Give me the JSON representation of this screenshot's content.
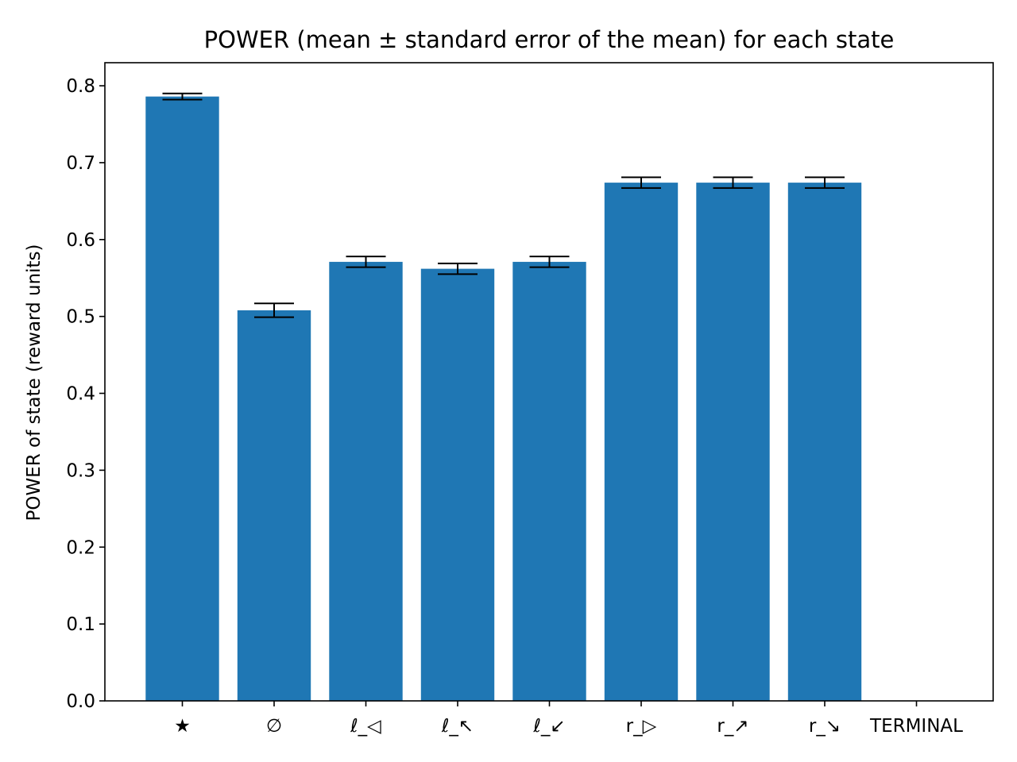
{
  "chart_data": {
    "type": "bar",
    "title": "POWER (mean ± standard error of the mean) for each state",
    "xlabel": "",
    "ylabel": "POWER of state (reward units)",
    "categories": [
      "★",
      "∅",
      "ℓ_◁",
      "ℓ_↖",
      "ℓ_↙",
      "r_▷",
      "r_↗",
      "r_↘",
      "TERMINAL"
    ],
    "values": [
      0.786,
      0.508,
      0.571,
      0.562,
      0.571,
      0.674,
      0.674,
      0.674,
      0
    ],
    "errors": [
      0.004,
      0.009,
      0.007,
      0.007,
      0.007,
      0.007,
      0.007,
      0.007,
      0
    ],
    "ylim": [
      0,
      0.83
    ],
    "yticks": [
      "0.0",
      "0.1",
      "0.2",
      "0.3",
      "0.4",
      "0.5",
      "0.6",
      "0.7",
      "0.8"
    ],
    "grid": false,
    "bar_color": "#1f77b4",
    "error_color": "#000000"
  }
}
